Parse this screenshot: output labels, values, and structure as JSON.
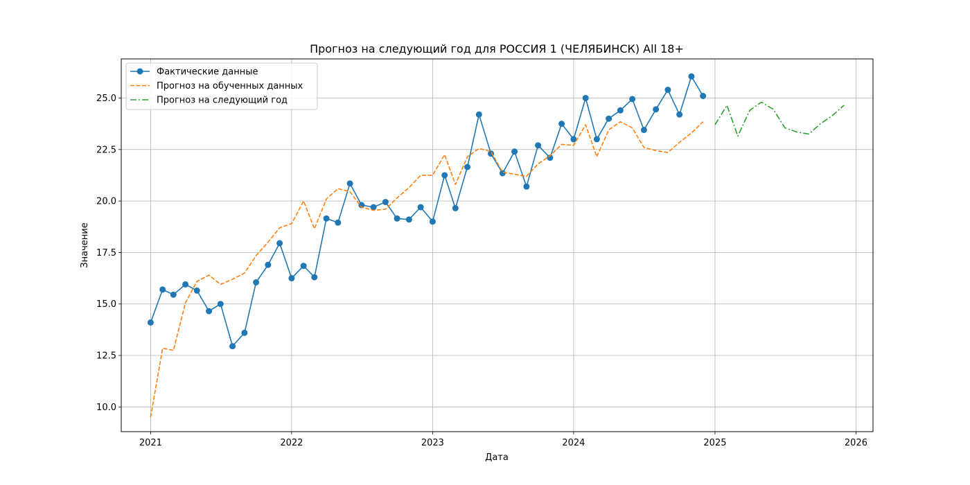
{
  "chart_data": {
    "type": "line",
    "title": "Прогноз на следующий год для РОССИЯ 1 (ЧЕЛЯБИНСК) All 18+",
    "xlabel": "Дата",
    "ylabel": "Значение",
    "xlim": [
      "2020-10-17",
      "2026-02-14"
    ],
    "ylim": [
      8.8,
      26.9
    ],
    "x_ticks": [
      "2021-01-01",
      "2022-01-01",
      "2023-01-01",
      "2024-01-01",
      "2025-01-01",
      "2026-01-01"
    ],
    "x_tick_labels": [
      "2021",
      "2022",
      "2023",
      "2024",
      "2025",
      "2026"
    ],
    "y_ticks": [
      10.0,
      12.5,
      15.0,
      17.5,
      20.0,
      22.5,
      25.0
    ],
    "y_tick_labels": [
      "10.0",
      "12.5",
      "15.0",
      "17.5",
      "20.0",
      "22.5",
      "25.0"
    ],
    "grid": true,
    "legend_position": "top-left",
    "series": [
      {
        "name": "Фактические данные",
        "color": "#1f77b4",
        "style": "solid",
        "marker": "circle",
        "x": [
          "2021-01-01",
          "2021-02-01",
          "2021-03-01",
          "2021-04-01",
          "2021-05-01",
          "2021-06-01",
          "2021-07-01",
          "2021-08-01",
          "2021-09-01",
          "2021-10-01",
          "2021-11-01",
          "2021-12-01",
          "2022-01-01",
          "2022-02-01",
          "2022-03-01",
          "2022-04-01",
          "2022-05-01",
          "2022-06-01",
          "2022-07-01",
          "2022-08-01",
          "2022-09-01",
          "2022-10-01",
          "2022-11-01",
          "2022-12-01",
          "2023-01-01",
          "2023-02-01",
          "2023-03-01",
          "2023-04-01",
          "2023-05-01",
          "2023-06-01",
          "2023-07-01",
          "2023-08-01",
          "2023-09-01",
          "2023-10-01",
          "2023-11-01",
          "2023-12-01",
          "2024-01-01",
          "2024-02-01",
          "2024-03-01",
          "2024-04-01",
          "2024-05-01",
          "2024-06-01",
          "2024-07-01",
          "2024-08-01",
          "2024-09-01",
          "2024-10-01",
          "2024-11-01",
          "2024-12-01"
        ],
        "values": [
          14.1,
          15.7,
          15.45,
          15.95,
          15.65,
          14.65,
          15.0,
          12.95,
          13.6,
          16.05,
          16.9,
          17.95,
          16.25,
          16.85,
          16.3,
          19.15,
          18.95,
          20.85,
          19.8,
          19.7,
          19.95,
          19.15,
          19.1,
          19.7,
          19.0,
          21.25,
          19.65,
          21.65,
          24.2,
          22.3,
          21.35,
          22.4,
          20.7,
          22.7,
          22.1,
          23.75,
          23.0,
          25.0,
          23.0,
          24.0,
          24.4,
          24.95,
          23.45,
          24.45,
          25.4,
          24.2,
          26.05,
          25.1
        ]
      },
      {
        "name": "Прогноз на обученных данных",
        "color": "#ff7f0e",
        "style": "dashed",
        "x": [
          "2021-01-01",
          "2021-02-01",
          "2021-03-01",
          "2021-04-01",
          "2021-05-01",
          "2021-06-01",
          "2021-07-01",
          "2021-08-01",
          "2021-09-01",
          "2021-10-01",
          "2021-11-01",
          "2021-12-01",
          "2022-01-01",
          "2022-02-01",
          "2022-03-01",
          "2022-04-01",
          "2022-05-01",
          "2022-06-01",
          "2022-07-01",
          "2022-08-01",
          "2022-09-01",
          "2022-10-01",
          "2022-11-01",
          "2022-12-01",
          "2023-01-01",
          "2023-02-01",
          "2023-03-01",
          "2023-04-01",
          "2023-05-01",
          "2023-06-01",
          "2023-07-01",
          "2023-08-01",
          "2023-09-01",
          "2023-10-01",
          "2023-11-01",
          "2023-12-01",
          "2024-01-01",
          "2024-02-01",
          "2024-03-01",
          "2024-04-01",
          "2024-05-01",
          "2024-06-01",
          "2024-07-01",
          "2024-08-01",
          "2024-09-01",
          "2024-10-01",
          "2024-11-01",
          "2024-12-01"
        ],
        "values": [
          9.5,
          12.85,
          12.75,
          15.05,
          16.1,
          16.4,
          15.95,
          16.2,
          16.5,
          17.35,
          18.0,
          18.7,
          18.9,
          20.0,
          18.65,
          20.1,
          20.6,
          20.45,
          19.7,
          19.55,
          19.6,
          20.15,
          20.65,
          21.25,
          21.25,
          22.25,
          20.8,
          22.15,
          22.55,
          22.4,
          21.4,
          21.3,
          21.2,
          21.8,
          22.2,
          22.75,
          22.7,
          23.7,
          22.15,
          23.45,
          23.85,
          23.55,
          22.6,
          22.45,
          22.35,
          22.85,
          23.3,
          23.85
        ]
      },
      {
        "name": "Прогноз на следующий год",
        "color": "#2ca02c",
        "style": "dashdot",
        "x": [
          "2025-01-01",
          "2025-02-01",
          "2025-03-01",
          "2025-04-01",
          "2025-05-01",
          "2025-06-01",
          "2025-07-01",
          "2025-08-01",
          "2025-09-01",
          "2025-10-01",
          "2025-11-01",
          "2025-12-01"
        ],
        "values": [
          23.7,
          24.65,
          23.15,
          24.4,
          24.8,
          24.45,
          23.55,
          23.35,
          23.25,
          23.75,
          24.15,
          24.65
        ]
      }
    ]
  }
}
